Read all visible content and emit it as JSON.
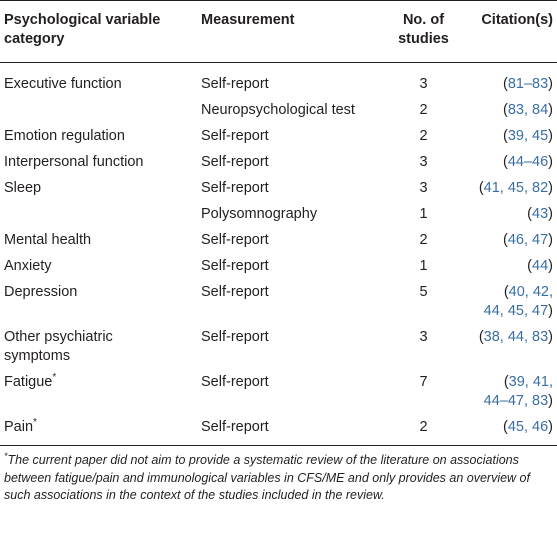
{
  "headers": {
    "category": "Psychological variable category",
    "measurement": "Measurement",
    "studies": "No. of studies",
    "citations": "Citation(s)"
  },
  "rows": [
    {
      "category": "Executive function",
      "measurement": "Self-report",
      "studies": "3",
      "citations": "81–83"
    },
    {
      "category": "",
      "measurement": "Neuropsychological test",
      "studies": "2",
      "citations": "83, 84"
    },
    {
      "category": "Emotion regulation",
      "measurement": "Self-report",
      "studies": "2",
      "citations": "39, 45"
    },
    {
      "category": "Interpersonal function",
      "measurement": "Self-report",
      "studies": "3",
      "citations": "44–46"
    },
    {
      "category": "Sleep",
      "measurement": "Self-report",
      "studies": "3",
      "citations": "41, 45, 82"
    },
    {
      "category": "",
      "measurement": "Polysomnography",
      "studies": "1",
      "citations": "43"
    },
    {
      "category": "Mental health",
      "measurement": "Self-report",
      "studies": "2",
      "citations": "46, 47"
    },
    {
      "category": "Anxiety",
      "measurement": "Self-report",
      "studies": "1",
      "citations": "44"
    },
    {
      "category": "Depression",
      "measurement": "Self-report",
      "studies": "5",
      "citations_line1": "40, 42,",
      "citations_line2": "44, 45, 47"
    },
    {
      "category_line1": "Other psychiatric",
      "category_line2": "symptoms",
      "measurement": "Self-report",
      "studies": "3",
      "citations": "38, 44, 83"
    },
    {
      "category": "Fatigue",
      "category_mark": "*",
      "measurement": "Self-report",
      "studies": "7",
      "citations_line1": "39, 41,",
      "citations_line2": "44–47, 83"
    },
    {
      "category": "Pain",
      "category_mark": "*",
      "measurement": "Self-report",
      "studies": "2",
      "citations": "45, 46"
    }
  ],
  "footnote": {
    "mark": "*",
    "text": "The current paper did not aim to provide a systematic review of the literature on associations between fatigue/pain and immunological variables in CFS/ME and only provides an overview of such associations in the context of the studies included in the review."
  },
  "colors": {
    "text": "#231f20",
    "reference_link": "#3a6ea5"
  }
}
